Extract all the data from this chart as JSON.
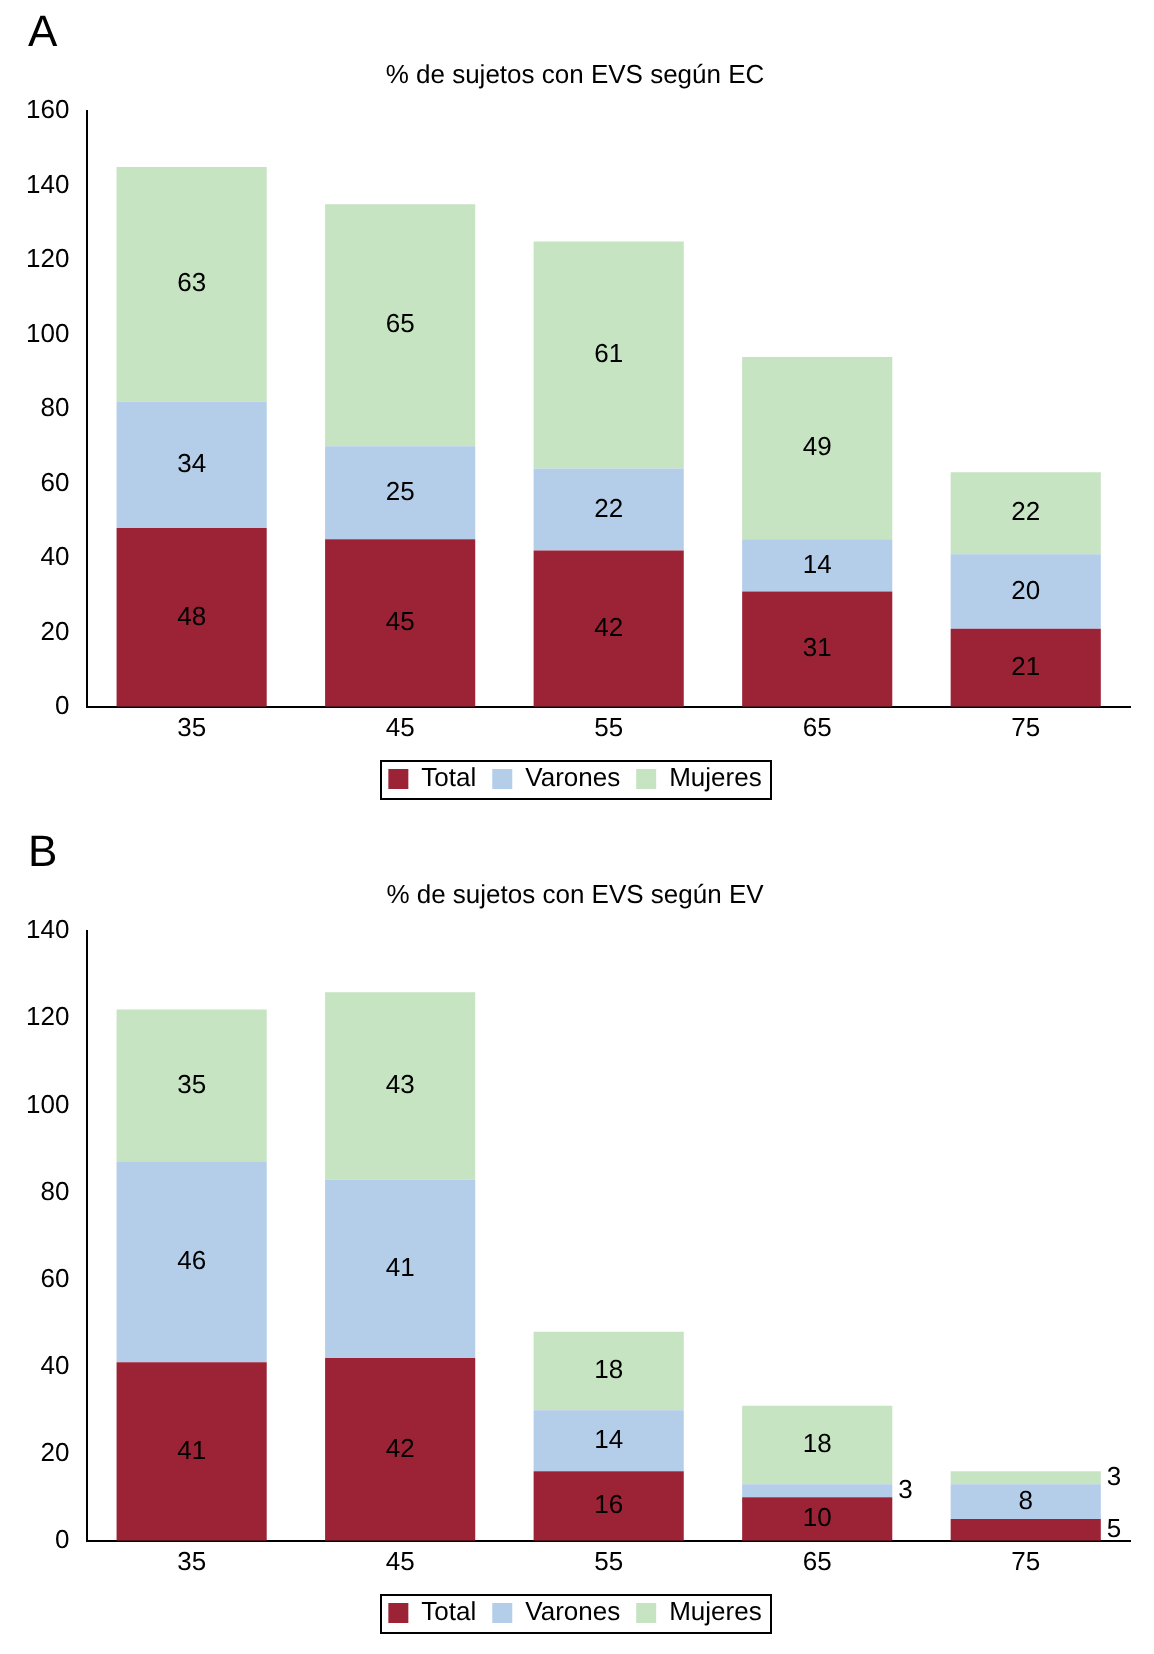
{
  "chart_data": [
    {
      "type": "bar",
      "title": "% de sujetos con EVS según EC",
      "annotations": [
        "A"
      ],
      "categories": [
        "35",
        "45",
        "55",
        "65",
        "75"
      ],
      "stacked": true,
      "data_labels": true,
      "legend": "bottom",
      "grid": false,
      "ylim": [
        0,
        160
      ],
      "yticks": [
        0,
        20,
        40,
        60,
        80,
        100,
        120,
        140,
        160
      ],
      "series": [
        {
          "name": "Total",
          "color": "#9b2335",
          "values": [
            48,
            45,
            42,
            31,
            21
          ]
        },
        {
          "name": "Varones",
          "color": "#b4cde9",
          "values": [
            34,
            25,
            22,
            14,
            20
          ]
        },
        {
          "name": "Mujeres",
          "color": "#c6e3c2",
          "values": [
            63,
            65,
            61,
            49,
            22
          ]
        }
      ]
    },
    {
      "type": "bar",
      "title": "% de sujetos con EVS según EV",
      "annotations": [
        "B"
      ],
      "categories": [
        "35",
        "45",
        "55",
        "65",
        "75"
      ],
      "stacked": true,
      "data_labels": true,
      "legend": "bottom",
      "grid": false,
      "ylim": [
        0,
        140
      ],
      "yticks": [
        0,
        20,
        40,
        60,
        80,
        100,
        120,
        140
      ],
      "series": [
        {
          "name": "Total",
          "color": "#9b2335",
          "values": [
            41,
            42,
            16,
            10,
            5
          ]
        },
        {
          "name": "Varones",
          "color": "#b4cde9",
          "values": [
            46,
            41,
            14,
            3,
            8
          ]
        },
        {
          "name": "Mujeres",
          "color": "#c6e3c2",
          "values": [
            35,
            43,
            18,
            18,
            3
          ]
        }
      ]
    }
  ]
}
